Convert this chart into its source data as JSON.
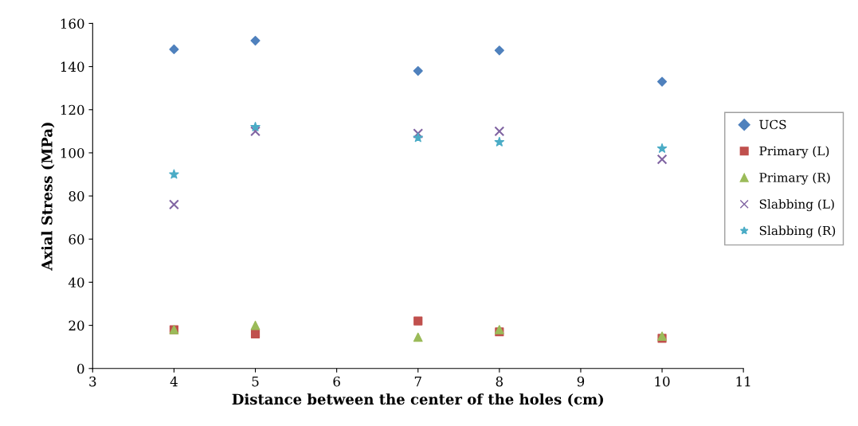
{
  "chart_data": {
    "type": "scatter",
    "xlabel": "Distance between the center of the holes (cm)",
    "ylabel": "Axial Stress (MPa)",
    "x": [
      4,
      5,
      7,
      8,
      10
    ],
    "series": [
      {
        "name": "UCS",
        "color": "#4f81bd",
        "marker": "diamond",
        "values": [
          148,
          152,
          138,
          147.5,
          133
        ]
      },
      {
        "name": "Primary (L)",
        "color": "#c0504d",
        "marker": "square",
        "values": [
          18,
          16,
          22,
          17,
          14
        ]
      },
      {
        "name": "Primary (R)",
        "color": "#9bbb59",
        "marker": "triangle",
        "values": [
          18,
          20,
          14.5,
          18,
          15
        ]
      },
      {
        "name": "Slabbing (L)",
        "color": "#8064a2",
        "marker": "cross",
        "values": [
          76,
          110,
          109,
          110,
          97
        ]
      },
      {
        "name": "Slabbing (R)",
        "color": "#4bacc6",
        "marker": "star",
        "values": [
          90,
          112,
          107,
          105,
          102
        ]
      }
    ],
    "xlim": [
      3,
      11
    ],
    "xticks": [
      3,
      4,
      5,
      6,
      7,
      8,
      9,
      10,
      11
    ],
    "ylim": [
      0,
      160
    ],
    "yticks": [
      0,
      20,
      40,
      60,
      80,
      100,
      120,
      140,
      160
    ],
    "grid": false,
    "legend": "right"
  }
}
